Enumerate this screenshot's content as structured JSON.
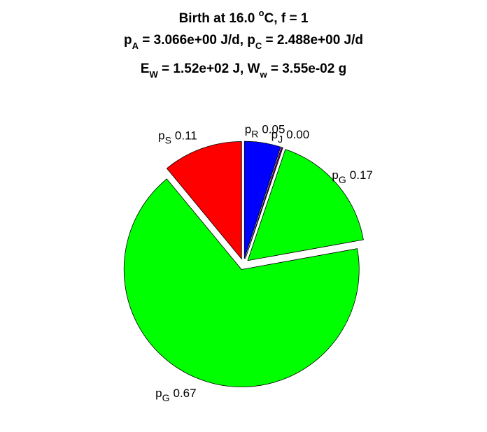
{
  "chart_data": {
    "type": "pie",
    "title": [
      [
        "Birth at 16.0 ",
        "o",
        "C, f = 1"
      ],
      [
        "p",
        "A",
        " = 3.066e+00 J/d, p",
        "C",
        " = 2.488e+00 J/d"
      ],
      [
        "E",
        "W",
        " = 1.52e+02 J, W",
        "w",
        " = 3.55e-02 g"
      ]
    ],
    "categories": [
      [
        "p",
        "R"
      ],
      [
        "p",
        "J"
      ],
      [
        "p",
        "G"
      ],
      [
        "p",
        "G"
      ],
      [
        "p",
        "S"
      ]
    ],
    "values": [
      0.05,
      0.002,
      0.17,
      0.67,
      0.11
    ],
    "value_labels": [
      "0.05",
      "0.00",
      "0.17",
      "0.67",
      "0.11"
    ],
    "colors": [
      "#0000ff",
      "#7f007f",
      "#00ff00",
      "#00ff00",
      "#ff0000"
    ]
  }
}
